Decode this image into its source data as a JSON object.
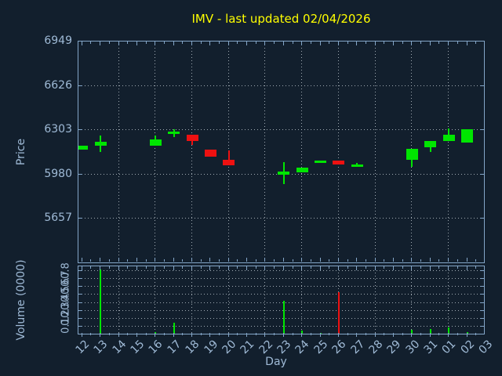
{
  "chart_data": {
    "type": "candlestick",
    "title": "IMV - last updated 02/04/2026",
    "xlabel": "Day",
    "price_ylabel": "Price",
    "volume_ylabel": "Volume (0000)",
    "x_ticklabels": [
      "12",
      "13",
      "14",
      "15",
      "16",
      "17",
      "18",
      "19",
      "20",
      "21",
      "22",
      "23",
      "24",
      "25",
      "26",
      "27",
      "28",
      "29",
      "30",
      "31",
      "01",
      "02",
      "03"
    ],
    "price_yticks": [
      6949,
      6626,
      6303,
      5980,
      5657
    ],
    "volume_yticks": [
      0.8,
      0.7,
      0.6,
      0.5,
      0.4,
      0.3,
      0.2,
      0.1
    ],
    "price_ylim": [
      5334,
      6949
    ],
    "volume_ylim": [
      0,
      0.86
    ],
    "grid": "dotted, horizontal at price and volume ticks, vertical every second day",
    "candles": [
      {
        "day": "12",
        "i": 0,
        "open": 6163,
        "high": 6190,
        "low": 6163,
        "close": 6190,
        "volume": 0
      },
      {
        "day": "13",
        "i": 1,
        "open": 6191,
        "high": 6267,
        "low": 6147,
        "close": 6218,
        "volume": 0.82
      },
      {
        "day": "16",
        "i": 4,
        "open": 6190,
        "high": 6262,
        "low": 6190,
        "close": 6233,
        "volume": 0.03
      },
      {
        "day": "17",
        "i": 5,
        "open": 6277,
        "high": 6310,
        "low": 6253,
        "close": 6290,
        "volume": 0.15
      },
      {
        "day": "18",
        "i": 6,
        "open": 6271,
        "high": 6271,
        "low": 6195,
        "close": 6224,
        "volume": 0.012
      },
      {
        "day": "19",
        "i": 7,
        "open": 6163,
        "high": 6163,
        "low": 6111,
        "close": 6111,
        "volume": 0
      },
      {
        "day": "20",
        "i": 8,
        "open": 6088,
        "high": 6157,
        "low": 6048,
        "close": 6048,
        "volume": 0
      },
      {
        "day": "23",
        "i": 11,
        "open": 5978,
        "high": 6071,
        "low": 5909,
        "close": 6004,
        "volume": 0.43
      },
      {
        "day": "24",
        "i": 12,
        "open": 5995,
        "high": 6033,
        "low": 5995,
        "close": 6033,
        "volume": 0.045
      },
      {
        "day": "25",
        "i": 13,
        "open": 6065,
        "high": 6084,
        "low": 6065,
        "close": 6084,
        "volume": 0.022
      },
      {
        "day": "26",
        "i": 14,
        "open": 6081,
        "high": 6081,
        "low": 6052,
        "close": 6052,
        "volume": 0.53
      },
      {
        "day": "27",
        "i": 15,
        "open": 6039,
        "high": 6066,
        "low": 6039,
        "close": 6052,
        "volume": 0
      },
      {
        "day": "30",
        "i": 18,
        "open": 6090,
        "high": 6167,
        "low": 6037,
        "close": 6167,
        "volume": 0.055
      },
      {
        "day": "31",
        "i": 19,
        "open": 6176,
        "high": 6224,
        "low": 6147,
        "close": 6224,
        "volume": 0.065
      },
      {
        "day": "01",
        "i": 20,
        "open": 6227,
        "high": 6317,
        "low": 6227,
        "close": 6271,
        "volume": 0.09
      },
      {
        "day": "02",
        "i": 21,
        "open": 6214,
        "high": 6310,
        "low": 6214,
        "close": 6310,
        "volume": 0.032
      }
    ],
    "colors": {
      "up": "#00e600",
      "down": "#ee1111",
      "background": "#121f2d",
      "axis": "#84a6c8",
      "text": "#9fbad6",
      "grid": "#b9c2ca",
      "title": "#ffff00"
    }
  }
}
